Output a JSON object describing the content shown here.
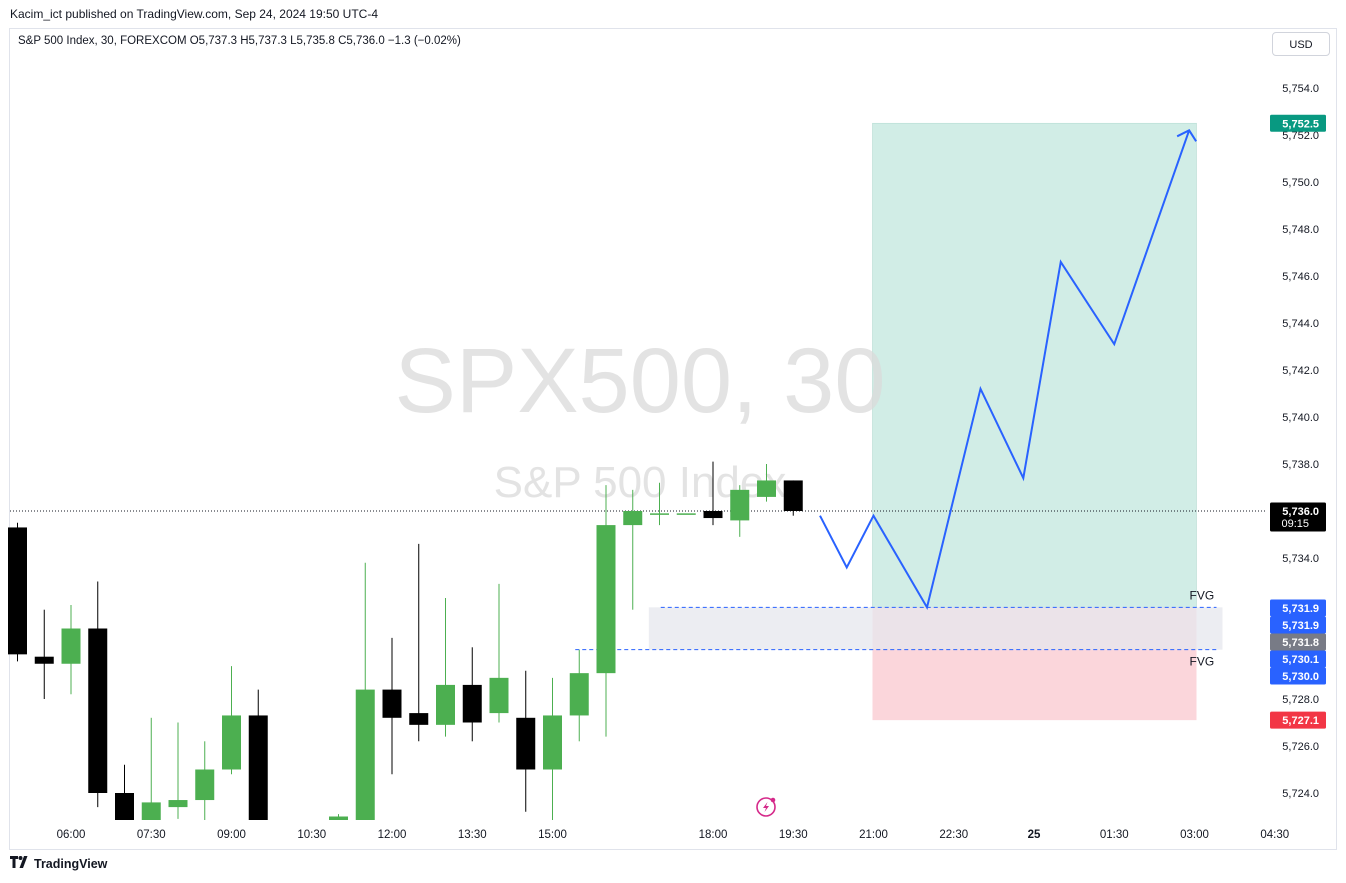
{
  "header": {
    "published_by": "Kacim_ict published on TradingView.com, Sep 24, 2024 19:50 UTC-4",
    "ohlc_line": "S&P 500 Index, 30, FOREXCOM  O5,737.3  H5,737.3  L5,735.8  C5,736.0  −1.3 (−0.02%)",
    "currency": "USD"
  },
  "watermark": {
    "symbol": "SPX500, 30",
    "name": "S&P 500 Index"
  },
  "footer": {
    "brand": "TradingView",
    "logo_icon": "tradingview-logo-icon"
  },
  "chart_data": {
    "type": "candlestick",
    "symbol": "S&P 500 Index",
    "interval": "30",
    "exchange": "FOREXCOM",
    "ylim": [
      5722.5,
      5755.5
    ],
    "y_ticks": [
      "5,754.0",
      "5,752.0",
      "5,750.0",
      "5,748.0",
      "5,746.0",
      "5,744.0",
      "5,742.0",
      "5,740.0",
      "5,738.0",
      "5,736.0",
      "5,734.0",
      "5,732.0",
      "5,730.0",
      "5,728.0",
      "5,726.0",
      "5,724.0"
    ],
    "x_ticks": [
      {
        "label": "06:00",
        "t": 6.0
      },
      {
        "label": "07:30",
        "t": 7.5
      },
      {
        "label": "09:00",
        "t": 9.0
      },
      {
        "label": "10:30",
        "t": 10.5
      },
      {
        "label": "12:00",
        "t": 12.0
      },
      {
        "label": "13:30",
        "t": 13.5
      },
      {
        "label": "15:00",
        "t": 15.0
      },
      {
        "label": "18:00",
        "t": 18.0
      },
      {
        "label": "19:30",
        "t": 19.5
      },
      {
        "label": "21:00",
        "t": 21.0
      },
      {
        "label": "22:30",
        "t": 22.5
      },
      {
        "label": "25",
        "t": 24.0,
        "bold": true
      },
      {
        "label": "01:30",
        "t": 25.5
      },
      {
        "label": "03:00",
        "t": 27.0
      },
      {
        "label": "04:30",
        "t": 28.5
      }
    ],
    "candles": [
      {
        "t": 5.0,
        "o": 5735.3,
        "h": 5735.5,
        "l": 5729.6,
        "c": 5729.9
      },
      {
        "t": 5.5,
        "o": 5729.8,
        "h": 5731.8,
        "l": 5728.0,
        "c": 5729.5
      },
      {
        "t": 6.0,
        "o": 5729.5,
        "h": 5732.0,
        "l": 5728.2,
        "c": 5731.0
      },
      {
        "t": 6.5,
        "o": 5731.0,
        "h": 5733.0,
        "l": 5723.4,
        "c": 5724.0
      },
      {
        "t": 7.0,
        "o": 5724.0,
        "h": 5725.2,
        "l": 5722.8,
        "c": 5722.8
      },
      {
        "t": 7.5,
        "o": 5722.8,
        "h": 5727.2,
        "l": 5722.8,
        "c": 5723.6
      },
      {
        "t": 8.0,
        "o": 5723.4,
        "h": 5727.0,
        "l": 5722.9,
        "c": 5723.7
      },
      {
        "t": 8.5,
        "o": 5723.7,
        "h": 5726.2,
        "l": 5722.8,
        "c": 5725.0
      },
      {
        "t": 9.0,
        "o": 5725.0,
        "h": 5729.4,
        "l": 5724.8,
        "c": 5727.3
      },
      {
        "t": 9.5,
        "o": 5727.3,
        "h": 5728.4,
        "l": 5722.8,
        "c": 5722.8
      },
      {
        "t": 11.0,
        "o": 5722.8,
        "h": 5723.1,
        "l": 5722.8,
        "c": 5723.0
      },
      {
        "t": 11.5,
        "o": 5722.8,
        "h": 5733.8,
        "l": 5722.8,
        "c": 5728.4
      },
      {
        "t": 12.0,
        "o": 5728.4,
        "h": 5730.6,
        "l": 5724.8,
        "c": 5727.2
      },
      {
        "t": 12.5,
        "o": 5727.4,
        "h": 5734.6,
        "l": 5726.2,
        "c": 5726.9
      },
      {
        "t": 13.0,
        "o": 5726.9,
        "h": 5732.3,
        "l": 5726.4,
        "c": 5728.6
      },
      {
        "t": 13.5,
        "o": 5728.6,
        "h": 5730.2,
        "l": 5726.2,
        "c": 5727.0
      },
      {
        "t": 14.0,
        "o": 5727.4,
        "h": 5732.9,
        "l": 5727.0,
        "c": 5728.9
      },
      {
        "t": 14.5,
        "o": 5727.2,
        "h": 5729.2,
        "l": 5723.2,
        "c": 5725.0
      },
      {
        "t": 15.0,
        "o": 5725.0,
        "h": 5728.9,
        "l": 5722.8,
        "c": 5727.3
      },
      {
        "t": 15.5,
        "o": 5727.3,
        "h": 5730.1,
        "l": 5726.2,
        "c": 5729.1
      },
      {
        "t": 16.0,
        "o": 5729.1,
        "h": 5737.1,
        "l": 5726.4,
        "c": 5735.4
      },
      {
        "t": 16.5,
        "o": 5735.4,
        "h": 5736.9,
        "l": 5731.8,
        "c": 5736.0
      },
      {
        "t": 17.0,
        "o": 5735.9,
        "h": 5737.2,
        "l": 5735.4,
        "c": 5735.9
      },
      {
        "t": 17.5,
        "o": 5735.9,
        "h": 5735.9,
        "l": 5735.9,
        "c": 5735.9
      },
      {
        "t": 18.0,
        "o": 5736.0,
        "h": 5738.1,
        "l": 5735.4,
        "c": 5735.7
      },
      {
        "t": 18.5,
        "o": 5735.6,
        "h": 5737.1,
        "l": 5734.9,
        "c": 5736.9
      },
      {
        "t": 19.0,
        "o": 5736.6,
        "h": 5738.0,
        "l": 5736.4,
        "c": 5737.3
      },
      {
        "t": 19.5,
        "o": 5737.3,
        "h": 5737.3,
        "l": 5735.8,
        "c": 5736.0
      }
    ],
    "colors": {
      "up": "#4caf50",
      "down": "#000000",
      "projection": "#2962ff",
      "target_zone": "#d1ede6",
      "stop_zone": "#fbd6db",
      "fvg_box": "#e6e7ee"
    },
    "current_price": {
      "label": "5,736.0",
      "countdown": "09:15"
    },
    "position": {
      "entry_price": 5731.9,
      "target": {
        "price": 5752.5,
        "label": "5,752.5"
      },
      "stop": {
        "price": 5727.1,
        "label": "5,727.1"
      },
      "t_start": 21.0,
      "t_end": 27.0
    },
    "fvg": {
      "upper": 5731.9,
      "lower": 5730.1,
      "t_start": 16.8,
      "t_end": 27.0,
      "labels": [
        "FVG",
        "FVG"
      ],
      "line_t_start": 16.5,
      "line_t_end": 27.0
    },
    "price_labels": [
      {
        "price": 5731.9,
        "label": "5,731.9",
        "color": "#2962ff"
      },
      {
        "price": 5731.9,
        "label": "5,731.9",
        "color": "#2962ff"
      },
      {
        "price": 5731.8,
        "label": "5,731.8",
        "color": "#787b86"
      },
      {
        "price": 5730.1,
        "label": "5,730.1",
        "color": "#2962ff"
      },
      {
        "price": 5730.0,
        "label": "5,730.0",
        "color": "#2962ff"
      }
    ],
    "projection": [
      {
        "t": 20.0,
        "p": 5735.8
      },
      {
        "t": 20.5,
        "p": 5733.6
      },
      {
        "t": 21.0,
        "p": 5735.8
      },
      {
        "t": 22.0,
        "p": 5731.9
      },
      {
        "t": 23.0,
        "p": 5741.2
      },
      {
        "t": 23.8,
        "p": 5737.4
      },
      {
        "t": 24.5,
        "p": 5746.6
      },
      {
        "t": 25.5,
        "p": 5743.1
      },
      {
        "t": 26.9,
        "p": 5752.2
      }
    ],
    "replay_icon": "lightning-replay-icon"
  }
}
